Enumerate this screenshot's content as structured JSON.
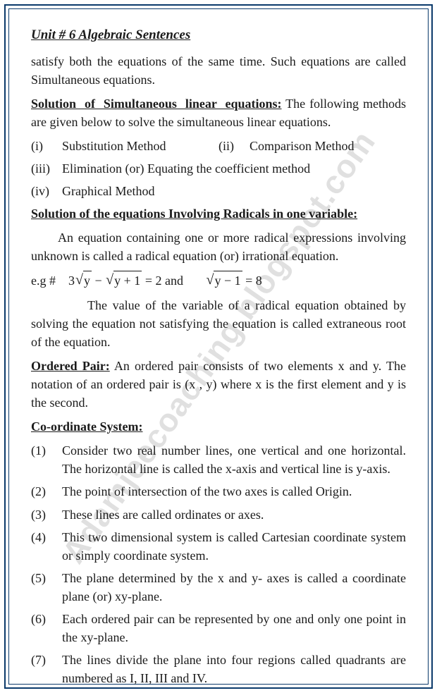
{
  "border_color": "#0b3a6b",
  "unit_title": "Unit # 6 Algebraic Sentences",
  "intro_para": "satisfy both the equations of the same time. Such equations are called Simultaneous equations.",
  "sec1": {
    "heading": "Solution of Simultaneous linear equations:",
    "tail": " The following methods are given below to solve the simultaneous linear equations.",
    "items": [
      {
        "n": "(i)",
        "t": "Substitution Method"
      },
      {
        "n": "(ii)",
        "t": "Comparison Method"
      },
      {
        "n": "(iii)",
        "t": "Elimination (or) Equating the coefficient method"
      },
      {
        "n": "(iv)",
        "t": "Graphical Method"
      }
    ]
  },
  "sec2": {
    "heading": "Solution of the equations Involving Radicals in one variable:",
    "para1": "An equation containing one or more radical expressions involving unknown is called a radical equation (or) irrational equation.",
    "eq_prefix": "e.g #",
    "eq_coef": "3",
    "eq_rad1": "y",
    "eq_minus": " − ",
    "eq_rad2": "y + 1",
    "eq_eq1": " = 2 and",
    "eq_rad3": "y − 1",
    "eq_eq2": " = 8",
    "para2": "The value of the variable of a radical equation obtained by solving the equation not satisfying the equation is called extraneous root of the equation."
  },
  "sec3": {
    "heading": "Ordered Pair:",
    "tail": " An ordered pair consists of two elements x and y. The notation of an ordered pair is (x , y) where x is the first element and y is the second."
  },
  "sec4": {
    "heading": "Co-ordinate System:",
    "items": [
      {
        "n": "(1)",
        "t": "Consider two real number lines, one vertical and one horizontal. The horizontal line is called the x-axis and vertical line is y-axis."
      },
      {
        "n": "(2)",
        "t": "The point of intersection of the two axes is called Origin."
      },
      {
        "n": "(3)",
        "t": "These lines are called ordinates or axes."
      },
      {
        "n": "(4)",
        "t": "This two dimensional system is called Cartesian coordinate system or simply coordinate system."
      },
      {
        "n": "(5)",
        "t": "The plane determined by the x and y- axes is called a coordinate plane (or) xy-plane."
      },
      {
        "n": "(6)",
        "t": "Each ordered pair can be represented by one and only one point in the xy-plane."
      },
      {
        "n": "(7)",
        "t": "The lines divide the plane into four regions called quadrants are numbered as I, II, III and IV."
      }
    ]
  },
  "watermark": "Adamjeecoaching.blogspot.com"
}
